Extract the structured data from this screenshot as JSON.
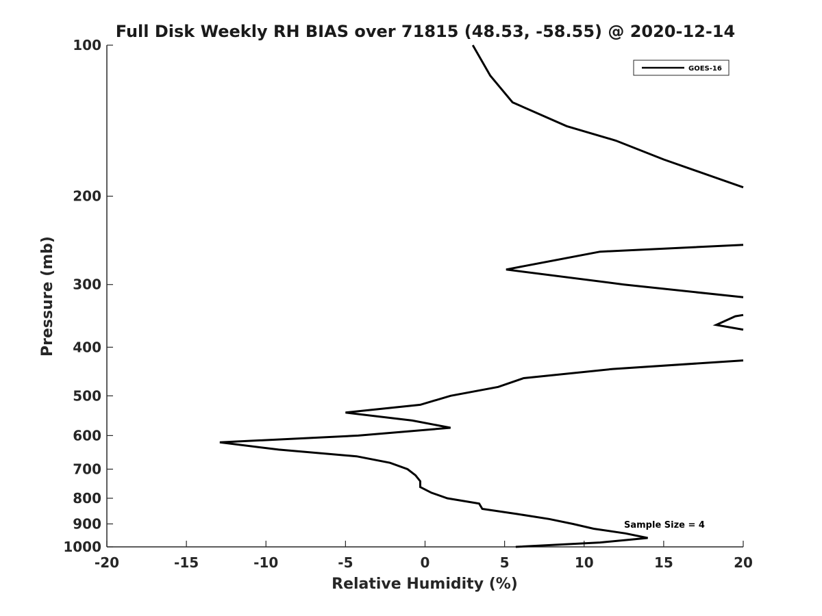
{
  "chart_data": {
    "type": "line",
    "title": "Full Disk Weekly RH BIAS over 71815 (48.53, -58.55) @ 2020-12-14",
    "xlabel": "Relative Humidity (%)",
    "ylabel": "Pressure (mb)",
    "xlim": [
      -20,
      20
    ],
    "ylim": [
      100,
      1000
    ],
    "y_scale": "log",
    "y_reversed": true,
    "x_ticks": [
      -20,
      -15,
      -10,
      -5,
      0,
      5,
      10,
      15,
      20
    ],
    "x_tick_labels": [
      "-20",
      "-15",
      "-10",
      "-5",
      "0",
      "5",
      "10",
      "15",
      "20"
    ],
    "y_ticks": [
      100,
      200,
      300,
      400,
      500,
      600,
      700,
      800,
      900,
      1000
    ],
    "y_tick_labels": [
      "100",
      "200",
      "300",
      "400",
      "500",
      "600",
      "700",
      "800",
      "900",
      "1000"
    ],
    "grid": false,
    "legend_position": "top-right",
    "annotation": "Sample Size = 4",
    "series": [
      {
        "name": "GOES-16",
        "color": "#000000",
        "segments": [
          [
            {
              "x": 3.0,
              "p": 100
            },
            {
              "x": 4.1,
              "p": 115
            },
            {
              "x": 5.5,
              "p": 130
            },
            {
              "x": 8.9,
              "p": 145
            },
            {
              "x": 12.0,
              "p": 155
            },
            {
              "x": 15.0,
              "p": 169
            },
            {
              "x": 20.0,
              "p": 192
            }
          ],
          [
            {
              "x": 20.0,
              "p": 250
            },
            {
              "x": 11.0,
              "p": 258
            },
            {
              "x": 5.1,
              "p": 280
            },
            {
              "x": 12.5,
              "p": 300
            },
            {
              "x": 20.0,
              "p": 318
            }
          ],
          [
            {
              "x": 20.0,
              "p": 345
            },
            {
              "x": 19.5,
              "p": 347
            },
            {
              "x": 18.3,
              "p": 361
            },
            {
              "x": 20.0,
              "p": 369
            }
          ],
          [
            {
              "x": 20.0,
              "p": 425
            },
            {
              "x": 11.8,
              "p": 442
            },
            {
              "x": 6.2,
              "p": 461
            },
            {
              "x": 4.6,
              "p": 480
            },
            {
              "x": 1.6,
              "p": 500
            },
            {
              "x": -0.3,
              "p": 521
            },
            {
              "x": -5.0,
              "p": 540
            },
            {
              "x": -0.8,
              "p": 560
            },
            {
              "x": 1.6,
              "p": 579
            },
            {
              "x": -4.2,
              "p": 600
            },
            {
              "x": -12.9,
              "p": 619
            },
            {
              "x": -9.2,
              "p": 640
            },
            {
              "x": -4.3,
              "p": 660
            },
            {
              "x": -2.2,
              "p": 680
            },
            {
              "x": -1.1,
              "p": 700
            },
            {
              "x": -0.6,
              "p": 720
            },
            {
              "x": -0.3,
              "p": 740
            },
            {
              "x": -0.3,
              "p": 760
            },
            {
              "x": 0.4,
              "p": 780
            },
            {
              "x": 1.4,
              "p": 800
            },
            {
              "x": 3.4,
              "p": 820
            },
            {
              "x": 3.6,
              "p": 840
            },
            {
              "x": 5.8,
              "p": 860
            },
            {
              "x": 7.8,
              "p": 880
            },
            {
              "x": 9.3,
              "p": 900
            },
            {
              "x": 10.6,
              "p": 920
            },
            {
              "x": 12.6,
              "p": 940
            },
            {
              "x": 14.0,
              "p": 960
            },
            {
              "x": 11.0,
              "p": 980
            },
            {
              "x": 5.7,
              "p": 1000
            }
          ]
        ]
      }
    ]
  }
}
